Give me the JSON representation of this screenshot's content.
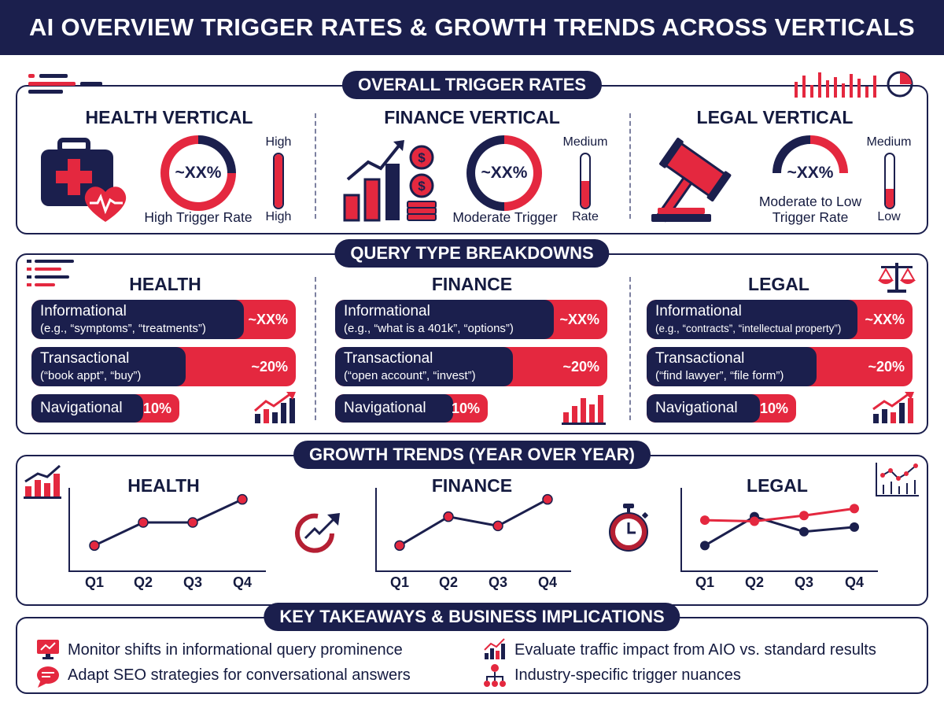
{
  "title": "AI OVERVIEW TRIGGER RATES & GROWTH TRENDS ACROSS VERTICALS",
  "colors": {
    "navy": "#1b1f4d",
    "red": "#e4283f"
  },
  "overall": {
    "heading": "OVERALL TRIGGER RATES",
    "health": {
      "title": "HEALTH VERTICAL",
      "donut_value": "~XX%",
      "donut_fill_fraction": 0.85,
      "caption": "High Trigger Rate",
      "meter_top": "High",
      "meter_bottom": "High",
      "meter_level": 0.9,
      "icon": "medical-kit-heart-icon"
    },
    "finance": {
      "title": "FINANCE VERTICAL",
      "donut_value": "~XX%",
      "donut_fill_fraction": 0.5,
      "caption": "Moderate Trigger",
      "meter_top": "Medium",
      "meter_bottom": "Rate",
      "meter_level": 0.5,
      "icon": "growth-bars-coins-icon"
    },
    "legal": {
      "title": "LEGAL VERTICAL",
      "donut_value": "~XX%",
      "donut_fill_fraction": 0.35,
      "caption_line1": "Moderate to Low",
      "caption_line2": "Trigger Rate",
      "meter_top": "Medium",
      "meter_bottom": "Low",
      "meter_level": 0.35,
      "icon": "gavel-icon"
    }
  },
  "query": {
    "heading": "QUERY TYPE BREAKDOWNS",
    "health": {
      "title": "HEALTH",
      "informational": {
        "label": "Informational",
        "sub": "(e.g., “symptoms”, “treatments”)",
        "value": "~XX%"
      },
      "transactional": {
        "label": "Transactional",
        "sub": "(“book appt”, “buy”)",
        "value": "~20%"
      },
      "navigational": {
        "label": "Navigational",
        "value": "10%"
      }
    },
    "finance": {
      "title": "FINANCE",
      "informational": {
        "label": "Informational",
        "sub": "(e.g., “what is a 401k”, “options”)",
        "value": "~XX%"
      },
      "transactional": {
        "label": "Transactional",
        "sub": "(“open account”, “invest”)",
        "value": "~20%"
      },
      "navigational": {
        "label": "Navigational",
        "value": "10%"
      }
    },
    "legal": {
      "title": "LEGAL",
      "informational": {
        "label": "Informational",
        "sub": "(e.g., “contracts”, “intellectual property”)",
        "value": "~XX%"
      },
      "transactional": {
        "label": "Transactional",
        "sub": "(“find lawyer”, “file form”)",
        "value": "~20%"
      },
      "navigational": {
        "label": "Navigational",
        "value": "10%"
      }
    }
  },
  "growth": {
    "heading": "GROWTH TRENDS (YEAR OVER YEAR)",
    "quarters": [
      "Q1",
      "Q2",
      "Q3",
      "Q4"
    ]
  },
  "chart_data": [
    {
      "type": "line",
      "title": "HEALTH",
      "categories": [
        "Q1",
        "Q2",
        "Q3",
        "Q4"
      ],
      "series": [
        {
          "values": [
            1,
            3,
            3,
            5
          ]
        }
      ],
      "ylim": [
        0,
        6
      ]
    },
    {
      "type": "line",
      "title": "FINANCE",
      "categories": [
        "Q1",
        "Q2",
        "Q3",
        "Q4"
      ],
      "series": [
        {
          "values": [
            1,
            3.5,
            2.7,
            5
          ]
        }
      ],
      "ylim": [
        0,
        6
      ]
    },
    {
      "type": "line",
      "title": "LEGAL",
      "categories": [
        "Q1",
        "Q2",
        "Q3",
        "Q4"
      ],
      "series": [
        {
          "color": "#1b1f4d",
          "values": [
            1,
            3.5,
            2.2,
            2.6
          ]
        },
        {
          "color": "#e4283f",
          "values": [
            3.2,
            3.1,
            3.6,
            4.2
          ]
        }
      ],
      "ylim": [
        0,
        6
      ]
    }
  ],
  "takeaways": {
    "heading": "KEY TAKEAWAYS & BUSINESS IMPLICATIONS",
    "items": [
      {
        "text": "Monitor shifts in informational query prominence",
        "icon": "monitor-chart-icon"
      },
      {
        "text": "Evaluate traffic impact from AIO vs. standard results",
        "icon": "rising-bars-icon"
      },
      {
        "text": "Adapt SEO strategies for conversational answers",
        "icon": "chat-bubble-icon"
      },
      {
        "text": "Industry-specific trigger nuances",
        "icon": "hierarchy-icon"
      }
    ]
  }
}
